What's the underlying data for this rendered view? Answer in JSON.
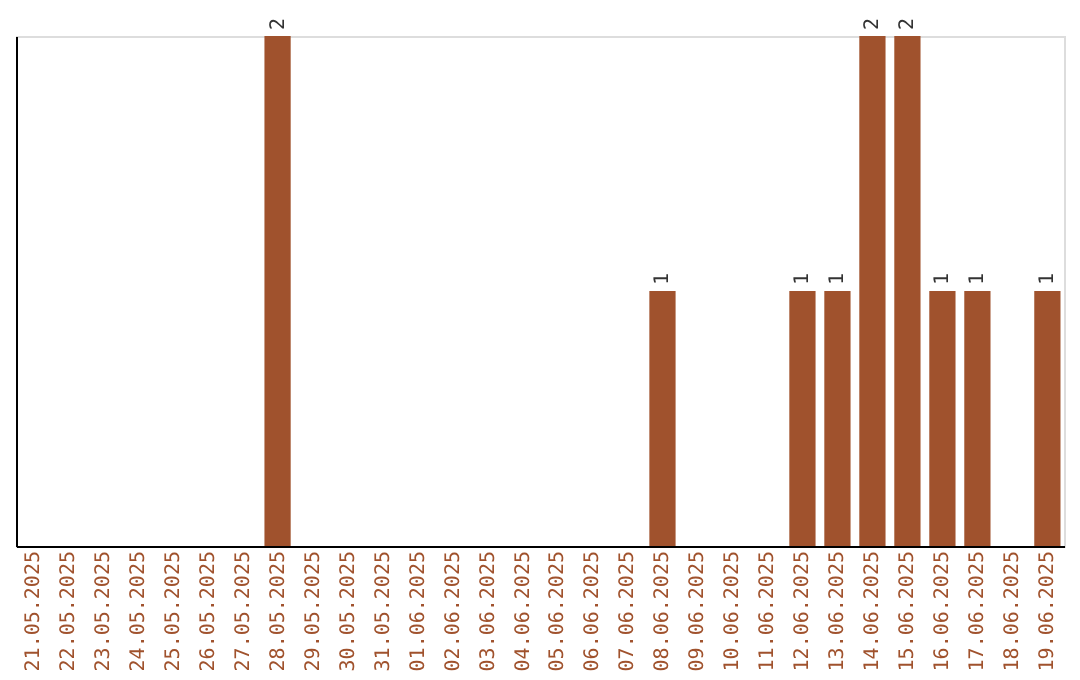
{
  "chart_data": {
    "type": "bar",
    "categories": [
      "21.05.2025",
      "22.05.2025",
      "23.05.2025",
      "24.05.2025",
      "25.05.2025",
      "26.05.2025",
      "27.05.2025",
      "28.05.2025",
      "29.05.2025",
      "30.05.2025",
      "31.05.2025",
      "01.06.2025",
      "02.06.2025",
      "03.06.2025",
      "04.06.2025",
      "05.06.2025",
      "06.06.2025",
      "07.06.2025",
      "08.06.2025",
      "09.06.2025",
      "10.06.2025",
      "11.06.2025",
      "12.06.2025",
      "13.06.2025",
      "14.06.2025",
      "15.06.2025",
      "16.06.2025",
      "17.06.2025",
      "18.06.2025",
      "19.06.2025"
    ],
    "values": [
      0,
      0,
      0,
      0,
      0,
      0,
      0,
      2,
      0,
      0,
      0,
      0,
      0,
      0,
      0,
      0,
      0,
      0,
      1,
      0,
      0,
      0,
      1,
      1,
      2,
      2,
      1,
      1,
      0,
      1
    ],
    "value_labels": [
      null,
      null,
      null,
      null,
      null,
      null,
      null,
      "2",
      null,
      null,
      null,
      null,
      null,
      null,
      null,
      null,
      null,
      null,
      "1",
      null,
      null,
      null,
      "1",
      "1",
      "2",
      "2",
      "1",
      "1",
      null,
      "1"
    ],
    "color": "#a0522d",
    "grid": false,
    "tick_labels": "x"
  }
}
